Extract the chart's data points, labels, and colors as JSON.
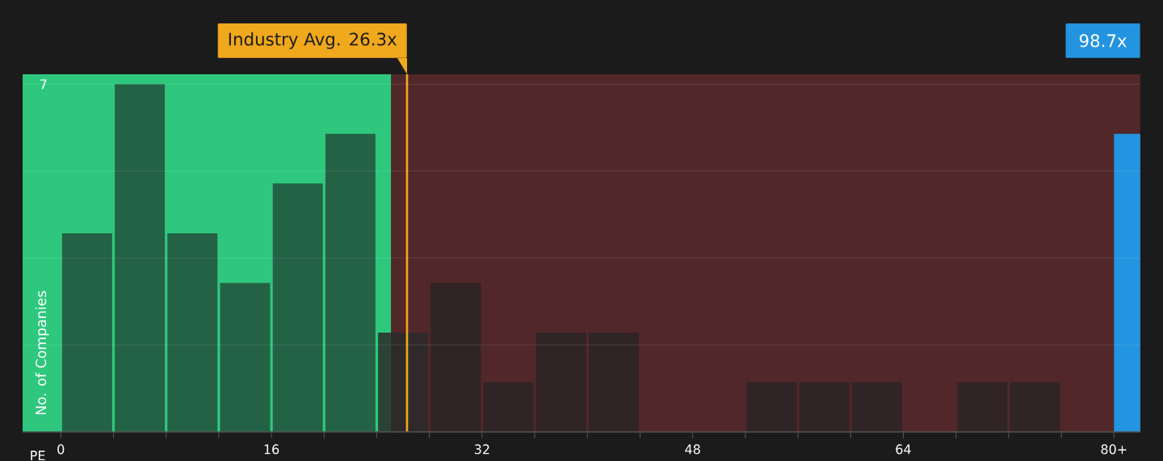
{
  "chart_data": {
    "type": "histogram",
    "bins": [
      0,
      4,
      8,
      12,
      16,
      20,
      24,
      28,
      32,
      36,
      40,
      44,
      48,
      52,
      56,
      60,
      64,
      68,
      72,
      76,
      80
    ],
    "values": [
      4,
      7,
      4,
      3,
      5,
      6,
      2,
      3,
      1,
      2,
      2,
      0,
      0,
      1,
      1,
      1,
      0,
      1,
      1,
      0
    ],
    "colors": [
      "#22503c",
      "#22503c",
      "#22503c",
      "#22503c",
      "#22503c",
      "#22503c",
      "#2a2a2a",
      "#2a2526",
      "#2a2526",
      "#2a2526",
      "#2a2526",
      "#2a2526",
      "#2a2526",
      "#2a2526",
      "#2a2526",
      "#2a2526",
      "#2a2526",
      "#2a2526",
      "#2a2526",
      "#2a2526"
    ],
    "series": [
      {
        "type": "bar",
        "x": [
          81
        ],
        "values": [
          6
        ],
        "color": "#2394df"
      }
    ],
    "xlabel": "PE",
    "ylabel": "No. of Companies",
    "xlim": [
      -2.9,
      82
    ],
    "ylim": [
      0,
      7.2
    ],
    "xticks": [
      0,
      {
        "value": 4,
        "label": null
      },
      {
        "value": 8,
        "label": null
      },
      {
        "value": 12,
        "label": null
      },
      16,
      {
        "value": 20,
        "label": null
      },
      {
        "value": 24,
        "label": null
      },
      {
        "value": 28,
        "label": null
      },
      32,
      {
        "value": 36,
        "label": null
      },
      {
        "value": 40,
        "label": null
      },
      {
        "value": 44,
        "label": null
      },
      48,
      {
        "value": 52,
        "label": null
      },
      {
        "value": 56,
        "label": null
      },
      {
        "value": 60,
        "label": null
      },
      64,
      {
        "value": 68,
        "label": null
      },
      {
        "value": 72,
        "label": null
      },
      {
        "value": 76,
        "label": null
      },
      {
        "value": 80,
        "label": "80+"
      }
    ],
    "yticks": [
      {
        "value": 1.75,
        "label": null
      },
      {
        "value": 3.5,
        "label": null
      },
      {
        "value": 5.25,
        "label": null
      },
      7
    ],
    "grid": "y",
    "ref_lines": [
      {
        "axis": "x",
        "value": 26.3,
        "label": "Industry Avg. 26.3x",
        "color": "#f0a81c"
      }
    ],
    "bands": [
      {
        "axis": "x",
        "from": -2.9,
        "to": 25.1,
        "color": "#2ec77d"
      },
      {
        "axis": "x",
        "from": 25.1,
        "to": 82,
        "color": "#512729"
      }
    ],
    "annotations": [
      "98.7x"
    ]
  }
}
